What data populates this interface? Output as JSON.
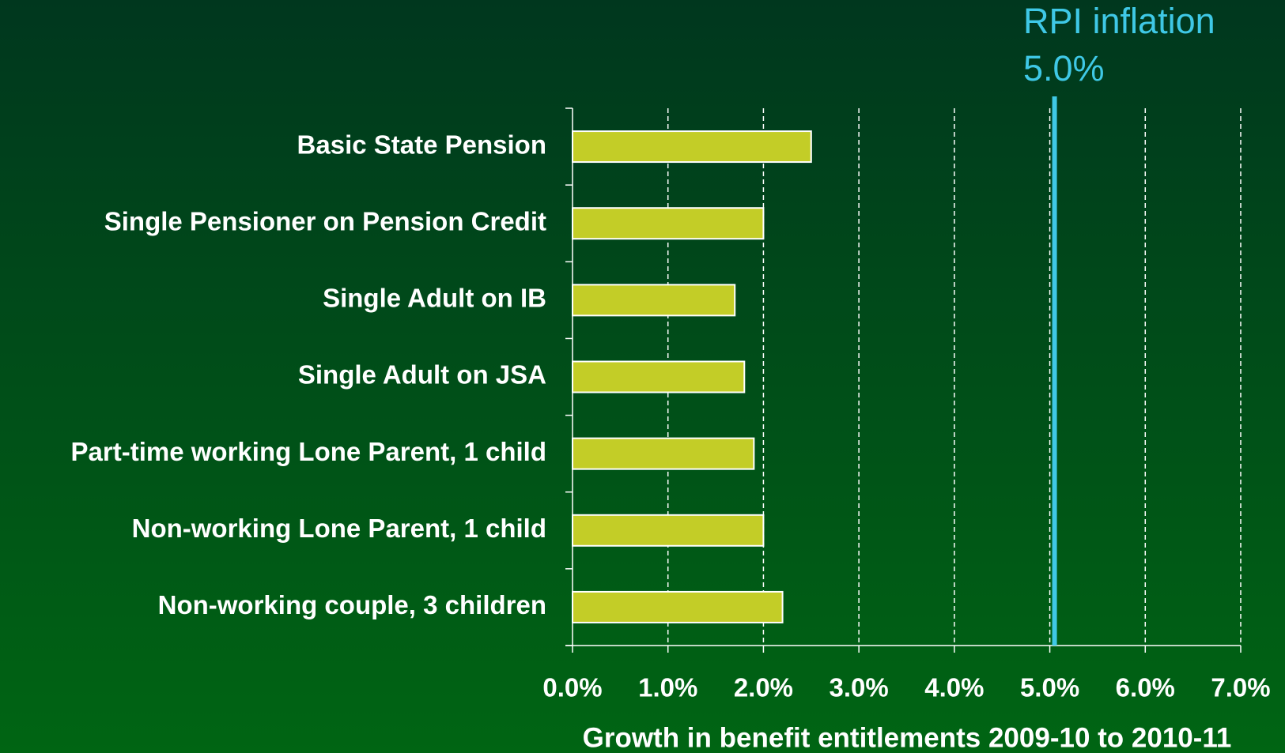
{
  "chart_data": {
    "type": "bar",
    "orientation": "horizontal",
    "x_label": "Growth in benefit entitlements 2009-10 to 2010-11",
    "categories": [
      "Basic State Pension",
      "Single Pensioner on Pension Credit",
      "Single Adult on IB",
      "Single Adult on JSA",
      "Part-time working Lone Parent, 1 child",
      "Non-working Lone Parent, 1 child",
      "Non-working couple, 3 children"
    ],
    "values": [
      2.5,
      2.0,
      1.7,
      1.8,
      1.9,
      2.0,
      2.2
    ],
    "color": "#c3cd27",
    "xlim": [
      0,
      7
    ],
    "xticks": [
      {
        "value": 0,
        "label": "0.0%"
      },
      {
        "value": 1,
        "label": "1.0%"
      },
      {
        "value": 2,
        "label": "2.0%"
      },
      {
        "value": 3,
        "label": "3.0%"
      },
      {
        "value": 4,
        "label": "4.0%"
      },
      {
        "value": 5,
        "label": "5.0%"
      },
      {
        "value": 6,
        "label": "6.0%"
      },
      {
        "value": 7,
        "label": "7.0%"
      }
    ],
    "grid": true,
    "reference_line": {
      "name": "RPI inflation",
      "value": 5.0,
      "label": "5.0%",
      "color": "#3fc8e6"
    }
  }
}
